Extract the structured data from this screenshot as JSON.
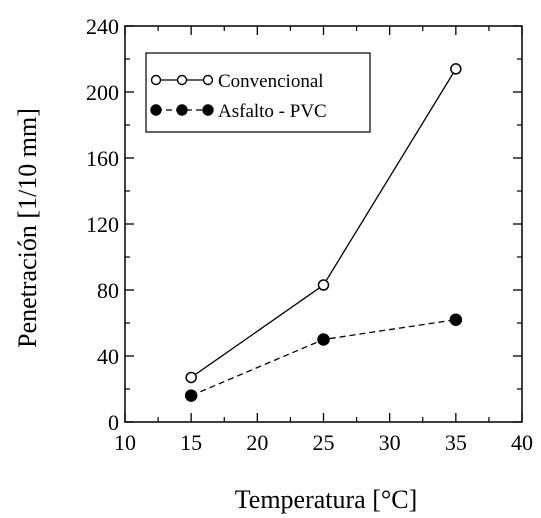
{
  "chart_data": {
    "type": "line",
    "title": "",
    "xlabel": "Temperatura [°C]",
    "ylabel": "Penetración [1/10 mm]",
    "xlim": [
      10,
      40
    ],
    "ylim": [
      0,
      240
    ],
    "xticks": [
      10,
      15,
      20,
      25,
      30,
      35,
      40
    ],
    "yticks": [
      0,
      40,
      80,
      120,
      160,
      200,
      240
    ],
    "grid": false,
    "legend_position": "top-left",
    "series": [
      {
        "name": "Convencional",
        "x": [
          15,
          25,
          35
        ],
        "y": [
          27,
          83,
          214
        ],
        "marker": "open-circle",
        "line": "solid",
        "color": "#000000"
      },
      {
        "name": "Asfalto - PVC",
        "x": [
          15,
          25,
          35
        ],
        "y": [
          16,
          50,
          62
        ],
        "marker": "filled-circle",
        "line": "dashed",
        "color": "#000000"
      }
    ]
  }
}
